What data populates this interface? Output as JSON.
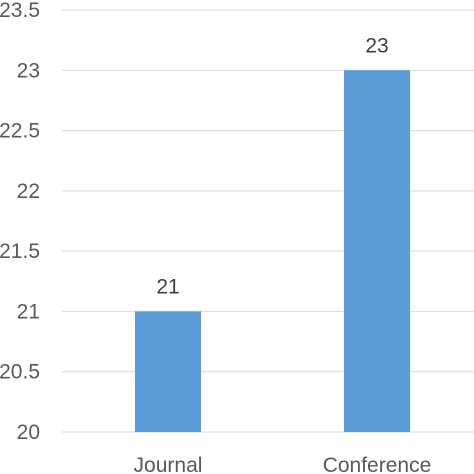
{
  "chart_data": {
    "type": "bar",
    "categories": [
      "Journal",
      "Conference"
    ],
    "values": [
      21,
      23
    ],
    "data_labels": [
      "21",
      "23"
    ],
    "title": "",
    "xlabel": "",
    "ylabel": "",
    "ylim": [
      20,
      23.5
    ],
    "yticks": [
      20,
      20.5,
      21,
      21.5,
      22,
      22.5,
      23,
      23.5
    ],
    "ytick_labels": [
      "20",
      "20.5",
      "21",
      "21.5",
      "22",
      "22.5",
      "23",
      "23.5"
    ],
    "grid": true,
    "legend": "none",
    "bar_color": "#5B9BD5",
    "grid_color": "#D9D9D9"
  }
}
